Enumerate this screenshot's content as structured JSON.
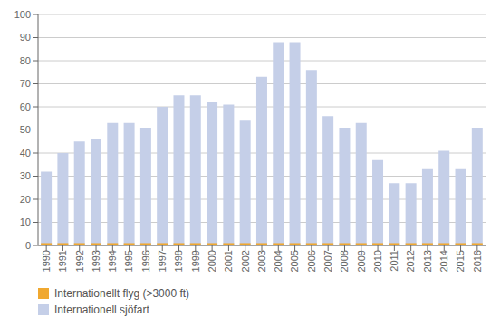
{
  "chart_data": {
    "type": "bar",
    "categories": [
      "1990",
      "1991",
      "1992",
      "1993",
      "1994",
      "1995",
      "1996",
      "1997",
      "1998",
      "1999",
      "2000",
      "2001",
      "2002",
      "2003",
      "2004",
      "2005",
      "2006",
      "2007",
      "2008",
      "2009",
      "2010",
      "2011",
      "2012",
      "2013",
      "2014",
      "2015",
      "2016"
    ],
    "series": [
      {
        "name": "Internationellt flyg (>3000 ft)",
        "color": "#f0a830",
        "values": [
          1,
          1,
          1,
          1,
          1,
          1,
          1,
          1,
          1,
          1,
          1,
          1,
          1,
          1,
          1,
          1,
          1,
          1,
          1,
          1,
          1,
          1,
          1,
          1,
          1,
          1,
          1
        ]
      },
      {
        "name": "Internationell sjöfart",
        "color": "#c5cfe8",
        "values": [
          32,
          40,
          45,
          46,
          53,
          53,
          51,
          60,
          65,
          65,
          62,
          61,
          54,
          73,
          88,
          88,
          76,
          56,
          51,
          53,
          37,
          27,
          27,
          33,
          41,
          33,
          51
        ]
      }
    ],
    "ylim": [
      0,
      100
    ],
    "yticks": [
      0,
      10,
      20,
      30,
      40,
      50,
      60,
      70,
      80,
      90,
      100
    ],
    "grid": true,
    "legend": "bottom-left"
  }
}
